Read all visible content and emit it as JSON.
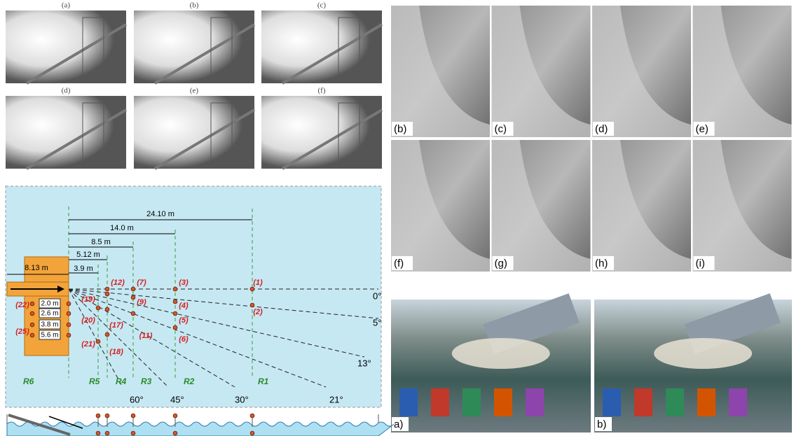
{
  "top_left_panels": [
    "(a)",
    "(b)",
    "(c)",
    "(d)",
    "(e)",
    "(f)"
  ],
  "top_right_panels": [
    "(b)",
    "(c)",
    "(d)",
    "(e)",
    "(f)",
    "(g)",
    "(h)",
    "(i)"
  ],
  "bottom_right_panels": [
    "a)",
    "b)"
  ],
  "diagram": {
    "distances": [
      "24.10 m",
      "14.0 m",
      "8.5 m",
      "5.12 m",
      "3.9 m",
      "8.13 m"
    ],
    "spacings": [
      "2.0 m",
      "2.6 m",
      "3.8 m",
      "5.6 m"
    ],
    "gauges": [
      "(1)",
      "(2)",
      "(3)",
      "(4)",
      "(5)",
      "(6)",
      "(7)",
      "(9)",
      "(11)",
      "(12)",
      "(19)",
      "(17)",
      "(18)",
      "(20)",
      "(21)",
      "(22)",
      "(25)"
    ],
    "angles": [
      "0°",
      "5°",
      "13°",
      "21°",
      "30°",
      "45°",
      "60°"
    ],
    "ranges": [
      "R1",
      "R2",
      "R3",
      "R4",
      "R5",
      "R6"
    ]
  }
}
